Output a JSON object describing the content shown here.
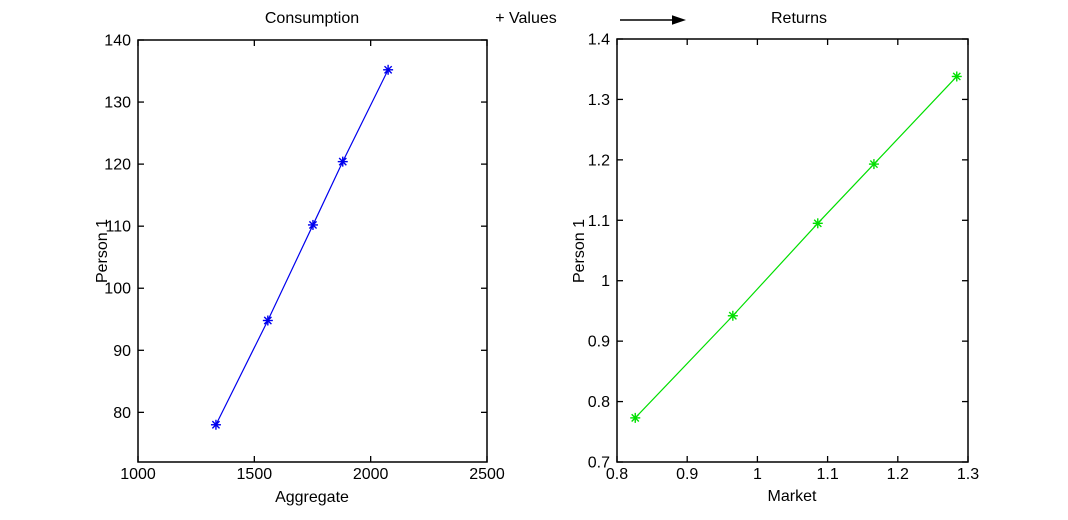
{
  "figure": {
    "background": "#ffffff",
    "axis_color": "#000000",
    "text_color": "#000000"
  },
  "annotation": {
    "label": "+ Values",
    "has_arrow": true,
    "arrow_color": "#000000"
  },
  "chart_data": [
    {
      "type": "line",
      "title": "Consumption",
      "xlabel": "Aggregate",
      "ylabel": "Person 1",
      "xlim": [
        1000,
        2500
      ],
      "ylim": [
        72,
        140
      ],
      "xticks": [
        1000,
        1500,
        2000,
        2500
      ],
      "xtick_labels": [
        "1000",
        "1500",
        "2000",
        "2500"
      ],
      "yticks": [
        80,
        90,
        100,
        110,
        120,
        130,
        140
      ],
      "ytick_labels": [
        "80",
        "90",
        "100",
        "110",
        "120",
        "130",
        "140"
      ],
      "grid": false,
      "box": true,
      "legend_position": "none",
      "series": [
        {
          "color": "#0000EE",
          "marker": "asterisk",
          "line_style": "solid",
          "x": [
            1335,
            1558,
            1752,
            1880,
            2075
          ],
          "y": [
            78.0,
            94.8,
            110.2,
            120.4,
            135.2
          ]
        }
      ]
    },
    {
      "type": "line",
      "title": "Returns",
      "xlabel": "Market",
      "ylabel": "Person 1",
      "xlim": [
        0.8,
        1.3
      ],
      "ylim": [
        0.7,
        1.4
      ],
      "xticks": [
        0.8,
        0.9,
        1.0,
        1.1,
        1.2,
        1.3
      ],
      "xtick_labels": [
        "0.8",
        "0.9",
        "1",
        "1.1",
        "1.2",
        "1.3"
      ],
      "yticks": [
        0.7,
        0.8,
        0.9,
        1.0,
        1.1,
        1.2,
        1.3,
        1.4
      ],
      "ytick_labels": [
        "0.7",
        "0.8",
        "0.9",
        "1",
        "1.1",
        "1.2",
        "1.3",
        "1.4"
      ],
      "grid": false,
      "box": true,
      "legend_position": "none",
      "series": [
        {
          "color": "#00DF00",
          "marker": "asterisk",
          "line_style": "solid",
          "x": [
            0.826,
            0.965,
            1.086,
            1.166,
            1.284
          ],
          "y": [
            0.773,
            0.942,
            1.095,
            1.193,
            1.338
          ]
        }
      ]
    }
  ]
}
